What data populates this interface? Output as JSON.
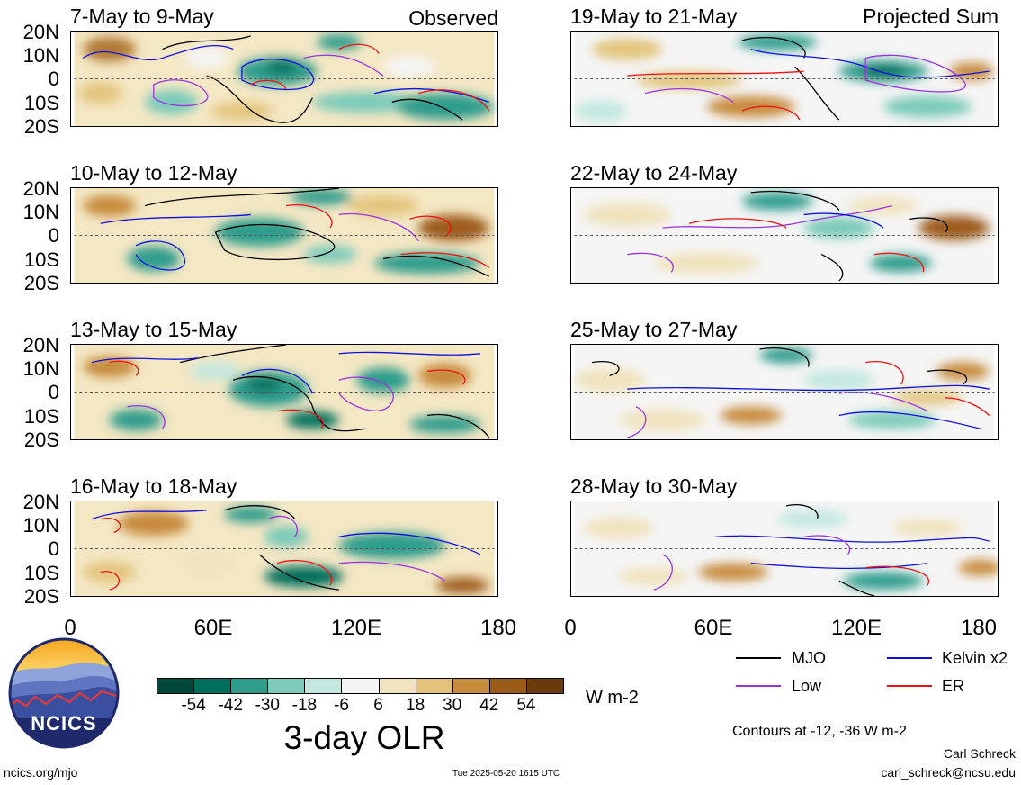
{
  "labels": {
    "observed": "Observed",
    "projected": "Projected Sum"
  },
  "panels_left": [
    {
      "title": "7-May to 9-May"
    },
    {
      "title": "10-May to 12-May"
    },
    {
      "title": "13-May to 15-May"
    },
    {
      "title": "16-May to 18-May"
    }
  ],
  "panels_right": [
    {
      "title": "19-May to 21-May"
    },
    {
      "title": "22-May to 24-May"
    },
    {
      "title": "25-May to 27-May"
    },
    {
      "title": "28-May to 30-May"
    }
  ],
  "lat_ticks": [
    "20N",
    "10N",
    "0",
    "10S",
    "20S"
  ],
  "lon_ticks": [
    "0",
    "60E",
    "120E",
    "180"
  ],
  "colorbar": {
    "colors": [
      "#00473a",
      "#006e5c",
      "#2f9c8c",
      "#7ccab9",
      "#c3e8e0",
      "#f5f5f5",
      "#f0e3bd",
      "#e2c278",
      "#c78b3c",
      "#9d5b1a",
      "#6a3c0b"
    ],
    "tick_labels": [
      "-54",
      "-42",
      "-30",
      "-18",
      "-6",
      "6",
      "18",
      "30",
      "42",
      "54"
    ],
    "units": "W m-2",
    "title": "3-day OLR"
  },
  "legend": [
    {
      "label": "MJO",
      "color": "#000000"
    },
    {
      "label": "Kelvin x2",
      "color": "#1010dd"
    },
    {
      "label": "Low",
      "color": "#9933dd"
    },
    {
      "label": "ER",
      "color": "#ee1111"
    }
  ],
  "contour_note": "Contours at -12, -36 W m-2",
  "logo_text": "NCICS",
  "footer": {
    "site": "ncics.org/mjo",
    "timestamp": "Tue 2025-05-20 1615 UTC",
    "author": "Carl Schreck",
    "email": "carl_schreck@ncsu.edu"
  }
}
